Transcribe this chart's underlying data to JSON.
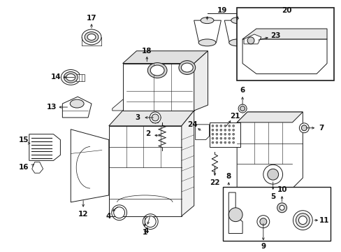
{
  "background_color": "#ffffff",
  "line_color": "#1a1a1a",
  "text_color": "#111111",
  "font_size": 7.5,
  "fig_width": 4.89,
  "fig_height": 3.6,
  "dpi": 100
}
